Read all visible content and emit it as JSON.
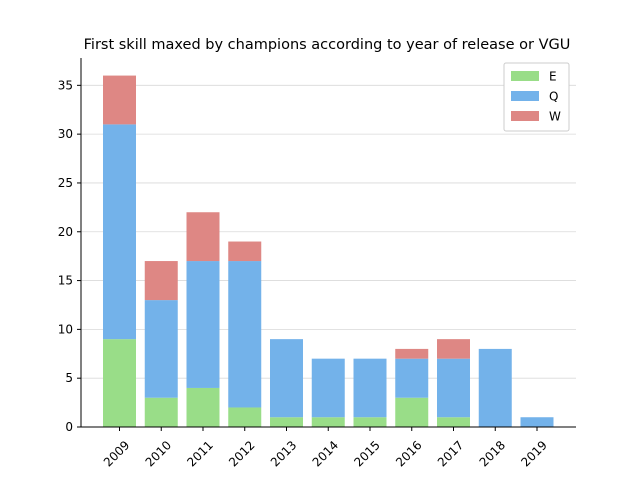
{
  "chart_data": {
    "type": "bar",
    "stacked": true,
    "title": "First skill maxed by champions according to year of release or VGU",
    "xlabel": "",
    "ylabel": "",
    "categories": [
      "2009",
      "2010",
      "2011",
      "2012",
      "2013",
      "2014",
      "2015",
      "2016",
      "2017",
      "2018",
      "2019"
    ],
    "series": [
      {
        "name": "E",
        "color": "#99dd88",
        "values": [
          9,
          3,
          4,
          2,
          1,
          1,
          1,
          3,
          1,
          0,
          0
        ]
      },
      {
        "name": "Q",
        "color": "#73b2ea",
        "values": [
          22,
          10,
          13,
          15,
          8,
          6,
          6,
          4,
          6,
          8,
          1
        ]
      },
      {
        "name": "W",
        "color": "#de8784",
        "values": [
          5,
          4,
          5,
          2,
          0,
          0,
          0,
          1,
          2,
          0,
          0
        ]
      }
    ],
    "ylim": [
      0,
      37.8
    ],
    "yticks": [
      0,
      5,
      10,
      15,
      20,
      25,
      30,
      35
    ],
    "grid": "y",
    "legend_position": "top-right"
  }
}
